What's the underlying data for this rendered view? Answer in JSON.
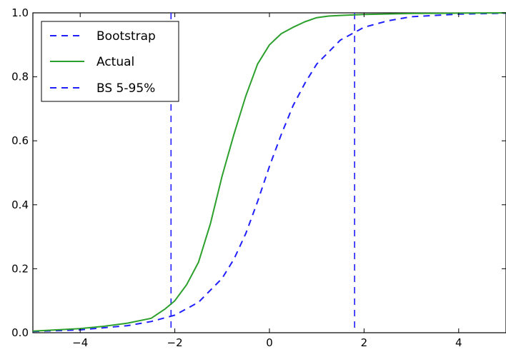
{
  "chart_data": {
    "type": "line",
    "title": "",
    "xlabel": "",
    "ylabel": "",
    "xlim": [
      -5,
      5
    ],
    "ylim": [
      0,
      1
    ],
    "grid": false,
    "legend_placement": "top-left",
    "x_ticks": [
      -4,
      -2,
      0,
      2,
      4
    ],
    "x_tick_labels": [
      "−4",
      "−2",
      "0",
      "2",
      "4"
    ],
    "y_ticks": [
      0.0,
      0.2,
      0.4,
      0.6,
      0.8,
      1.0
    ],
    "y_tick_labels": [
      "0.0",
      "0.2",
      "0.4",
      "0.6",
      "0.8",
      "1.0"
    ],
    "series": [
      {
        "name": "Bootstrap",
        "style": "dashed",
        "color": "#1f1fff",
        "x": [
          -5.0,
          -4.0,
          -3.0,
          -2.5,
          -2.0,
          -1.5,
          -1.0,
          -0.75,
          -0.5,
          -0.25,
          0.0,
          0.25,
          0.5,
          0.75,
          1.0,
          1.5,
          2.0,
          2.5,
          3.0,
          4.0,
          5.0
        ],
        "y": [
          0.004,
          0.009,
          0.022,
          0.035,
          0.055,
          0.095,
          0.17,
          0.23,
          0.31,
          0.41,
          0.52,
          0.62,
          0.71,
          0.78,
          0.84,
          0.915,
          0.955,
          0.975,
          0.988,
          0.996,
          0.999
        ]
      },
      {
        "name": "Actual",
        "style": "solid",
        "color": "#2ca02c",
        "x": [
          -5.0,
          -4.0,
          -3.5,
          -3.0,
          -2.5,
          -2.2,
          -2.0,
          -1.75,
          -1.5,
          -1.25,
          -1.0,
          -0.75,
          -0.5,
          -0.25,
          0.0,
          0.25,
          0.5,
          0.75,
          1.0,
          1.25,
          1.5,
          2.0,
          3.0,
          4.0,
          5.0
        ],
        "y": [
          0.005,
          0.013,
          0.02,
          0.03,
          0.045,
          0.075,
          0.1,
          0.15,
          0.22,
          0.34,
          0.49,
          0.62,
          0.74,
          0.84,
          0.9,
          0.935,
          0.955,
          0.972,
          0.985,
          0.99,
          0.992,
          0.995,
          0.998,
          0.999,
          1.0
        ]
      }
    ],
    "vlines": [
      {
        "name": "BS 5-95%",
        "style": "dashed",
        "color": "#1f1fff",
        "x": [
          -2.08,
          1.8
        ]
      }
    ],
    "legend": [
      "Bootstrap",
      "Actual",
      "BS 5-95%"
    ]
  }
}
